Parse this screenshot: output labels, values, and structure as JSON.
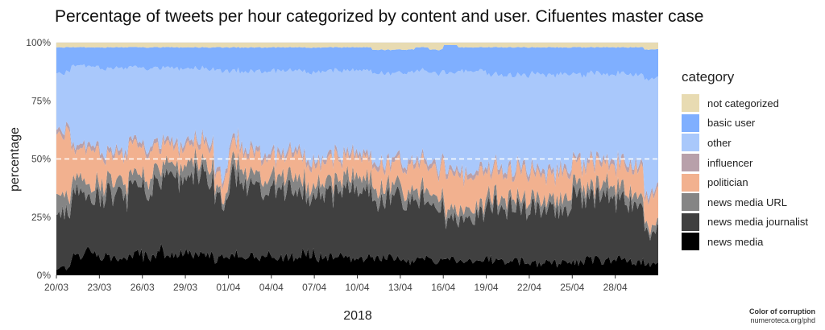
{
  "chart_data": {
    "type": "area",
    "title": "Percentage of tweets per hour categorized by content and user. Cifuentes master case",
    "xlabel": "2018",
    "ylabel": "percentage",
    "ylim": [
      0,
      100
    ],
    "xlim": [
      "2018-03-20",
      "2018-05-01"
    ],
    "y_ticks": [
      "0%",
      "25%",
      "50%",
      "75%",
      "100%"
    ],
    "x_ticks": [
      "20/03",
      "23/03",
      "26/03",
      "29/03",
      "01/04",
      "04/04",
      "07/04",
      "10/04",
      "13/04",
      "16/04",
      "19/04",
      "22/04",
      "25/04",
      "28/04"
    ],
    "stacking": "percent, stacked bottom to top in order of series",
    "reference_line": {
      "y": 50,
      "style": "dashed",
      "color": "#ffffff"
    },
    "legend_title": "category",
    "legend_position": "right",
    "series": [
      {
        "name": "news media",
        "color": "#000000",
        "values": [
          3,
          8,
          10,
          8,
          7,
          9,
          8,
          10,
          9,
          9,
          8,
          7,
          8,
          9,
          8,
          7,
          8,
          9,
          8,
          8,
          7,
          8,
          8,
          8,
          6,
          7,
          6,
          7,
          6,
          6,
          7,
          6,
          6,
          5,
          5,
          6,
          6,
          7,
          6,
          7,
          6,
          5
        ]
      },
      {
        "name": "news media journalist",
        "color": "#404040",
        "values": [
          25,
          25,
          26,
          26,
          27,
          29,
          30,
          31,
          33,
          34,
          36,
          25,
          35,
          32,
          31,
          30,
          29,
          28,
          29,
          28,
          30,
          27,
          25,
          27,
          24,
          26,
          24,
          17,
          18,
          21,
          24,
          24,
          24,
          25,
          23,
          25,
          28,
          27,
          27,
          26,
          24,
          14
        ]
      },
      {
        "name": "news media URL",
        "color": "#858585",
        "values": [
          8,
          6,
          5,
          6,
          5,
          5,
          6,
          5,
          5,
          6,
          5,
          3,
          6,
          5,
          5,
          5,
          6,
          5,
          5,
          5,
          5,
          6,
          5,
          5,
          5,
          5,
          5,
          4,
          4,
          4,
          4,
          4,
          4,
          4,
          4,
          5,
          5,
          5,
          5,
          5,
          4,
          3
        ]
      },
      {
        "name": "politician",
        "color": "#f2b18f",
        "values": [
          25,
          14,
          14,
          12,
          12,
          11,
          10,
          9,
          8,
          8,
          8,
          7,
          8,
          8,
          8,
          9,
          9,
          9,
          8,
          9,
          9,
          9,
          9,
          9,
          11,
          10,
          11,
          16,
          15,
          13,
          11,
          10,
          11,
          11,
          11,
          10,
          8,
          9,
          9,
          10,
          11,
          13
        ]
      },
      {
        "name": "influencer",
        "color": "#b8a0aa",
        "values": [
          2,
          2,
          2,
          2,
          2,
          2,
          2,
          2,
          2,
          2,
          2,
          2,
          2,
          2,
          2,
          2,
          2,
          2,
          2,
          2,
          2,
          2,
          2,
          2,
          2,
          2,
          2,
          2,
          2,
          2,
          2,
          2,
          2,
          2,
          2,
          2,
          2,
          2,
          2,
          2,
          2,
          2
        ]
      },
      {
        "name": "other",
        "color": "#a9c8fb",
        "values": [
          24,
          35,
          33,
          35,
          36,
          33,
          33,
          32,
          32,
          30,
          30,
          44,
          29,
          32,
          34,
          35,
          34,
          35,
          36,
          36,
          35,
          36,
          38,
          36,
          39,
          38,
          39,
          41,
          43,
          42,
          40,
          40,
          39,
          40,
          41,
          39,
          37,
          37,
          37,
          37,
          39,
          50
        ]
      },
      {
        "name": "basic user",
        "color": "#7fafff",
        "values": [
          11,
          8,
          8,
          9,
          9,
          9,
          9,
          9,
          9,
          9,
          9,
          10,
          10,
          10,
          10,
          10,
          10,
          10,
          10,
          10,
          10,
          10,
          10,
          10,
          10,
          10,
          10,
          12,
          10,
          10,
          12,
          12,
          12,
          11,
          12,
          11,
          12,
          11,
          12,
          11,
          12,
          13
        ]
      },
      {
        "name": "not categorized",
        "color": "#e8dbb2",
        "values": [
          2,
          2,
          2,
          2,
          2,
          2,
          2,
          2,
          2,
          2,
          2,
          2,
          2,
          2,
          2,
          2,
          2,
          2,
          2,
          2,
          2,
          2,
          3,
          3,
          3,
          2,
          3,
          1,
          2,
          2,
          2,
          2,
          2,
          2,
          2,
          2,
          2,
          2,
          2,
          2,
          2,
          3
        ]
      }
    ]
  },
  "credit": {
    "line1": "Color of corruption",
    "line2": "numeroteca.org/phd"
  }
}
